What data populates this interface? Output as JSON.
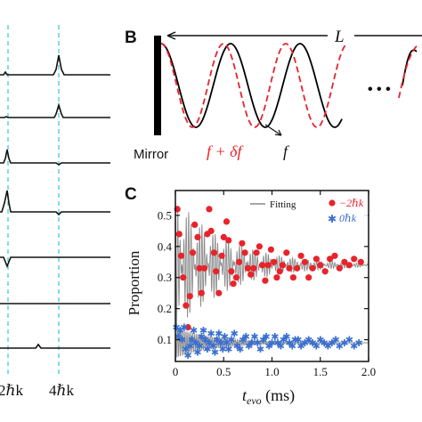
{
  "panelA": {
    "bottom_labels": [
      "2ℏk",
      "4ℏk"
    ]
  },
  "panelB": {
    "label": "B",
    "L_label": "L",
    "mirror_label": "Mirror",
    "shifted_label": "f + δf",
    "f_label": "f",
    "ellipsis": "• • •",
    "colors": {
      "solid": "#000000",
      "dashed": "#e8232a"
    }
  },
  "panelC": {
    "label": "C",
    "ylabel": "Proportion",
    "xlabel_main": "t",
    "xlabel_sub": "evo",
    "xlabel_unit": " (ms)",
    "legend": {
      "fitting": "Fitting",
      "minus2": "−2ℏk",
      "zero": "0ℏk"
    },
    "colors": {
      "minus2": "#e8232a",
      "zero": "#3a6fd0",
      "fit": "#888888"
    },
    "chart_data": {
      "type": "scatter",
      "xlim": [
        0,
        2.0
      ],
      "ylim": [
        0.03,
        0.58
      ],
      "xticks": [
        0,
        0.5,
        1.0,
        1.5,
        2.0
      ],
      "xtick_labels": [
        "0",
        "0.5",
        "1.0",
        "1.5",
        "2.0"
      ],
      "yticks": [
        0.1,
        0.2,
        0.3,
        0.4,
        0.5
      ],
      "ytick_labels": [
        "0.1",
        "0.2",
        "0.3",
        "0.4",
        "0.5"
      ],
      "series": [
        {
          "name": "−2ℏk",
          "marker": "circle",
          "points": [
            [
              0.02,
              0.52
            ],
            [
              0.04,
              0.44
            ],
            [
              0.06,
              0.37
            ],
            [
              0.08,
              0.3
            ],
            [
              0.11,
              0.21
            ],
            [
              0.13,
              0.14
            ],
            [
              0.15,
              0.24
            ],
            [
              0.18,
              0.38
            ],
            [
              0.2,
              0.47
            ],
            [
              0.23,
              0.43
            ],
            [
              0.25,
              0.33
            ],
            [
              0.27,
              0.25
            ],
            [
              0.3,
              0.33
            ],
            [
              0.33,
              0.44
            ],
            [
              0.35,
              0.52
            ],
            [
              0.37,
              0.45
            ],
            [
              0.4,
              0.38
            ],
            [
              0.42,
              0.32
            ],
            [
              0.45,
              0.25
            ],
            [
              0.48,
              0.37
            ],
            [
              0.5,
              0.43
            ],
            [
              0.53,
              0.48
            ],
            [
              0.55,
              0.42
            ],
            [
              0.58,
              0.32
            ],
            [
              0.6,
              0.28
            ],
            [
              0.63,
              0.3
            ],
            [
              0.66,
              0.35
            ],
            [
              0.69,
              0.41
            ],
            [
              0.72,
              0.38
            ],
            [
              0.75,
              0.33
            ],
            [
              0.78,
              0.31
            ],
            [
              0.81,
              0.33
            ],
            [
              0.84,
              0.38
            ],
            [
              0.87,
              0.4
            ],
            [
              0.9,
              0.34
            ],
            [
              0.93,
              0.29
            ],
            [
              0.96,
              0.34
            ],
            [
              0.99,
              0.39
            ],
            [
              1.02,
              0.35
            ],
            [
              1.05,
              0.3
            ],
            [
              1.08,
              0.32
            ],
            [
              1.11,
              0.34
            ],
            [
              1.15,
              0.38
            ],
            [
              1.18,
              0.33
            ],
            [
              1.22,
              0.3
            ],
            [
              1.26,
              0.33
            ],
            [
              1.3,
              0.37
            ],
            [
              1.34,
              0.35
            ],
            [
              1.38,
              0.3
            ],
            [
              1.42,
              0.33
            ],
            [
              1.46,
              0.36
            ],
            [
              1.5,
              0.34
            ],
            [
              1.55,
              0.32
            ],
            [
              1.6,
              0.36
            ],
            [
              1.65,
              0.37
            ],
            [
              1.7,
              0.33
            ],
            [
              1.75,
              0.35
            ],
            [
              1.8,
              0.34
            ],
            [
              1.85,
              0.36
            ],
            [
              1.92,
              0.35
            ]
          ]
        },
        {
          "name": "0ℏk",
          "marker": "star",
          "points": [
            [
              0.01,
              0.14
            ],
            [
              0.03,
              0.11
            ],
            [
              0.05,
              0.13
            ],
            [
              0.07,
              0.1
            ],
            [
              0.09,
              0.14
            ],
            [
              0.11,
              0.07
            ],
            [
              0.13,
              0.05
            ],
            [
              0.15,
              0.08
            ],
            [
              0.17,
              0.1
            ],
            [
              0.19,
              0.13
            ],
            [
              0.21,
              0.09
            ],
            [
              0.23,
              0.06
            ],
            [
              0.25,
              0.08
            ],
            [
              0.27,
              0.11
            ],
            [
              0.29,
              0.13
            ],
            [
              0.31,
              0.1
            ],
            [
              0.33,
              0.07
            ],
            [
              0.35,
              0.09
            ],
            [
              0.37,
              0.12
            ],
            [
              0.39,
              0.08
            ],
            [
              0.41,
              0.06
            ],
            [
              0.43,
              0.1
            ],
            [
              0.45,
              0.12
            ],
            [
              0.47,
              0.09
            ],
            [
              0.49,
              0.07
            ],
            [
              0.51,
              0.11
            ],
            [
              0.53,
              0.09
            ],
            [
              0.55,
              0.07
            ],
            [
              0.58,
              0.1
            ],
            [
              0.61,
              0.12
            ],
            [
              0.64,
              0.08
            ],
            [
              0.67,
              0.07
            ],
            [
              0.7,
              0.1
            ],
            [
              0.73,
              0.11
            ],
            [
              0.76,
              0.08
            ],
            [
              0.79,
              0.09
            ],
            [
              0.82,
              0.11
            ],
            [
              0.85,
              0.09
            ],
            [
              0.88,
              0.07
            ],
            [
              0.91,
              0.1
            ],
            [
              0.94,
              0.11
            ],
            [
              0.97,
              0.08
            ],
            [
              1.0,
              0.09
            ],
            [
              1.03,
              0.11
            ],
            [
              1.06,
              0.09
            ],
            [
              1.09,
              0.08
            ],
            [
              1.12,
              0.1
            ],
            [
              1.15,
              0.11
            ],
            [
              1.18,
              0.09
            ],
            [
              1.21,
              0.08
            ],
            [
              1.24,
              0.1
            ],
            [
              1.27,
              0.1
            ],
            [
              1.3,
              0.08
            ],
            [
              1.34,
              0.09
            ],
            [
              1.38,
              0.1
            ],
            [
              1.42,
              0.09
            ],
            [
              1.46,
              0.08
            ],
            [
              1.5,
              0.1
            ],
            [
              1.54,
              0.09
            ],
            [
              1.58,
              0.08
            ],
            [
              1.62,
              0.09
            ],
            [
              1.66,
              0.1
            ],
            [
              1.7,
              0.08
            ],
            [
              1.75,
              0.09
            ],
            [
              1.8,
              0.1
            ],
            [
              1.85,
              0.08
            ],
            [
              1.9,
              0.09
            ]
          ]
        }
      ]
    }
  }
}
